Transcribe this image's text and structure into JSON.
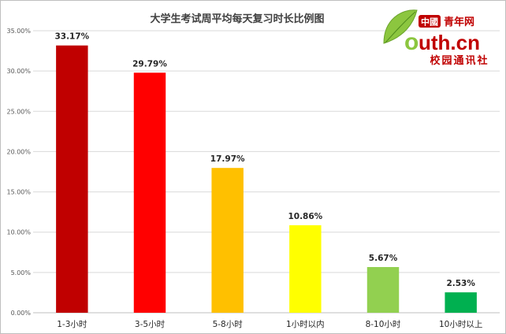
{
  "chart_data": {
    "type": "bar",
    "title": "大学生考试周平均每天复习时长比例图",
    "categories": [
      "1-3小时",
      "3-5小时",
      "5-8小时",
      "1小时以内",
      "8-10小时",
      "10小时以上"
    ],
    "values": [
      33.17,
      29.79,
      17.97,
      10.86,
      5.67,
      2.53
    ],
    "data_labels": [
      "33.17%",
      "29.79%",
      "17.97%",
      "10.86%",
      "5.67%",
      "2.53%"
    ],
    "bar_colors": [
      "#c00000",
      "#ff0000",
      "#ffc000",
      "#ffff00",
      "#92d050",
      "#00b050"
    ],
    "ylim": [
      0,
      35
    ],
    "yticks": [
      0,
      5,
      10,
      15,
      20,
      25,
      30,
      35
    ],
    "ytick_labels": [
      "0.00%",
      "5.00%",
      "10.00%",
      "15.00%",
      "20.00%",
      "25.00%",
      "30.00%",
      "35.00%"
    ],
    "xlabel": "",
    "ylabel": "",
    "grid": true,
    "legend": "none"
  },
  "logo": {
    "top_text": "中國",
    "cn_text": "青年网",
    "domain_o": "o",
    "domain_rest": "uth.cn",
    "subtitle": "校园通讯社",
    "brand_color": "#c00000",
    "leaf_color": "#8cc63f"
  }
}
